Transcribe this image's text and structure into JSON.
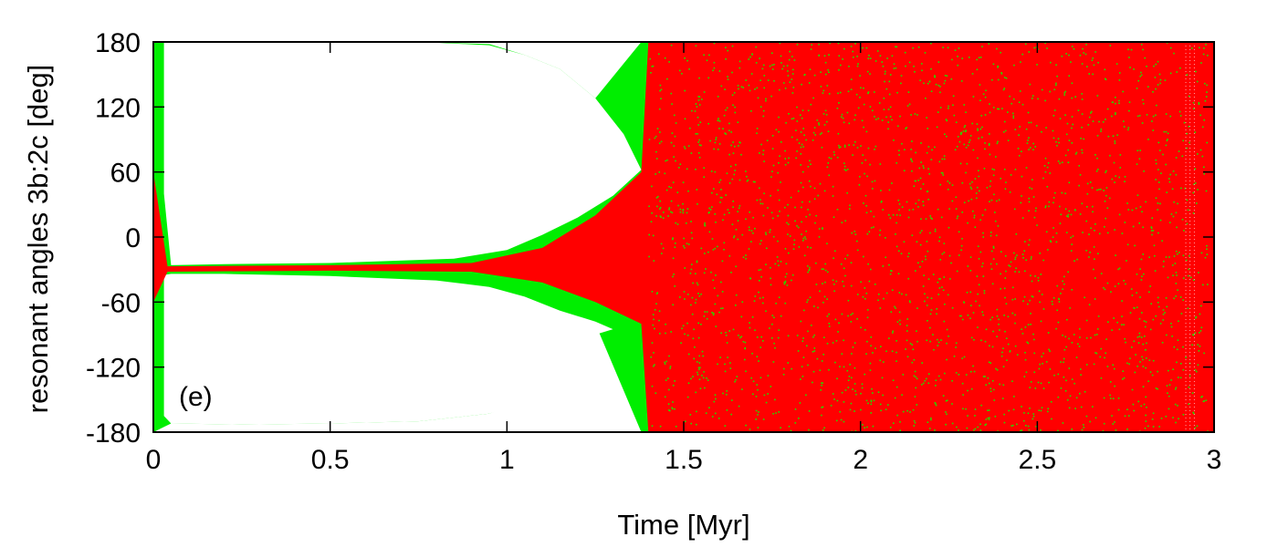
{
  "chart_data": {
    "type": "scatter",
    "xlabel": "Time [Myr]",
    "ylabel": "resonant angles 3b:2c [deg]",
    "xlim": [
      0,
      3
    ],
    "ylim": [
      -180,
      180
    ],
    "x_ticks": [
      "0",
      "0.5",
      "1",
      "1.5",
      "2",
      "2.5",
      "3"
    ],
    "y_ticks": [
      "180",
      "120",
      "60",
      "0",
      "-60",
      "-120",
      "-180"
    ],
    "annotation": "(e)",
    "grid": false,
    "legend": "none",
    "series": [
      {
        "color": "#00ee00",
        "description_points": [
          {
            "x": 0.0,
            "y_min": -180,
            "y_max": 180
          },
          {
            "x": 0.05,
            "y_min": -172,
            "y_max": 180
          },
          {
            "x": 0.25,
            "y_min": -173,
            "y_max": 180
          },
          {
            "x": 0.5,
            "y_min": -172,
            "y_max": 180
          },
          {
            "x": 0.75,
            "y_min": -170,
            "y_max": 180
          },
          {
            "x": 0.95,
            "y_min": -163,
            "y_max": 178
          },
          {
            "x": 1.05,
            "y_min": -150,
            "y_max": 168
          },
          {
            "x": 1.15,
            "y_min": -125,
            "y_max": 155
          },
          {
            "x": 1.25,
            "y_min": -80,
            "y_max": 128
          },
          {
            "x": 1.38,
            "y_min": -180,
            "y_max": 180
          },
          {
            "x": 1.5,
            "y_min": -180,
            "y_max": 180
          },
          {
            "x": 3.0,
            "y_min": -180,
            "y_max": 180
          }
        ]
      },
      {
        "color": "#ff0000",
        "description_points": [
          {
            "x": 0.0,
            "y_min": -60,
            "y_max": 60
          },
          {
            "x": 0.04,
            "y_min": -32,
            "y_max": -27
          },
          {
            "x": 0.5,
            "y_min": -31,
            "y_max": -26
          },
          {
            "x": 0.9,
            "y_min": -32,
            "y_max": -24
          },
          {
            "x": 1.1,
            "y_min": -42,
            "y_max": -10
          },
          {
            "x": 1.25,
            "y_min": -60,
            "y_max": 20
          },
          {
            "x": 1.38,
            "y_min": -80,
            "y_max": 60
          },
          {
            "x": 1.4,
            "y_min": -180,
            "y_max": 180
          },
          {
            "x": 3.0,
            "y_min": -180,
            "y_max": 180
          }
        ]
      }
    ]
  }
}
